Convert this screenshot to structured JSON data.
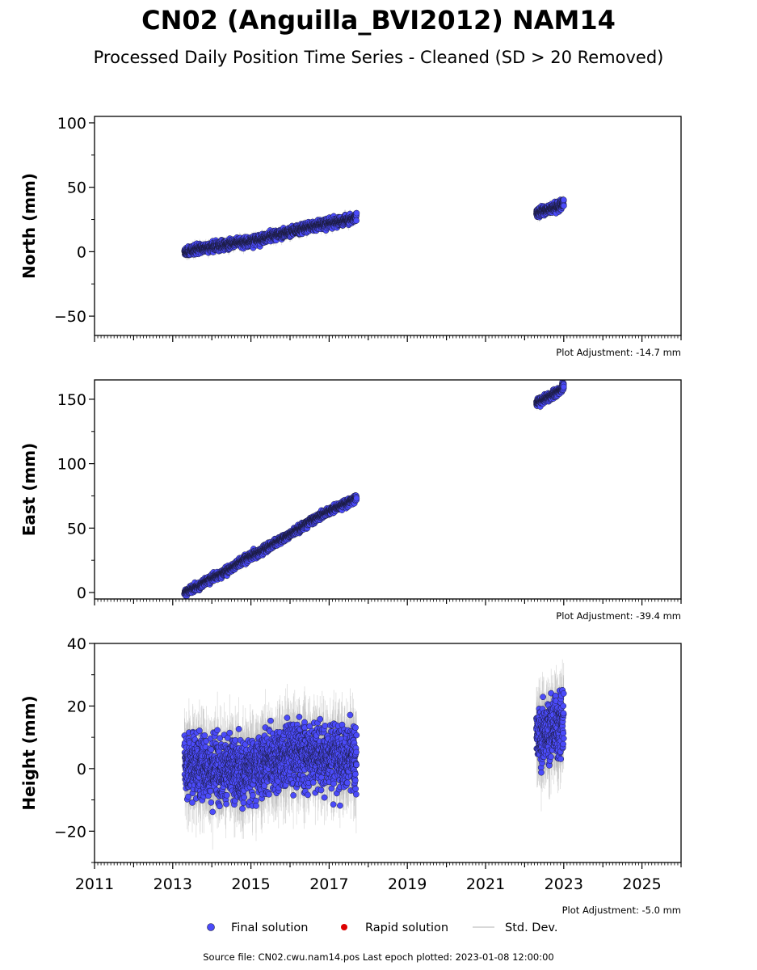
{
  "title": "CN02 (Anguilla_BVI2012) NAM14",
  "subtitle": "Processed Daily Position Time Series - Cleaned (SD > 20 Removed)",
  "source_note": "Source file: CN02.cwu.nam14.pos  Last epoch plotted: 2023-01-08 12:00:00",
  "legend": {
    "final": "Final solution",
    "rapid": "Rapid solution",
    "std": "Std. Dev."
  },
  "colors": {
    "final": "#4b4bfa",
    "final_edge": "#1a1a3a",
    "rapid": "#dd0000",
    "std": "#bbbbbb"
  },
  "chart_data": [
    {
      "type": "scatter",
      "ylabel": "North (mm)",
      "adjustment_label": "Plot Adjustment: -14.7 mm",
      "xlim": [
        2011,
        2026
      ],
      "ylim": [
        -65,
        105
      ],
      "yticks": [
        -50,
        0,
        50,
        100
      ],
      "grid": false,
      "series": [
        {
          "name": "Final solution",
          "x": [
            2013.3,
            2013.5,
            2013.7,
            2014.0,
            2014.3,
            2014.6,
            2015.0,
            2015.4,
            2015.8,
            2016.2,
            2016.6,
            2017.0,
            2017.4,
            2017.7,
            2022.3,
            2022.5,
            2022.7,
            2022.9,
            2023.0
          ],
          "y": [
            -1,
            1,
            3,
            3,
            5,
            7,
            8,
            11,
            14,
            17,
            20,
            22,
            24,
            27,
            30,
            32,
            34,
            36,
            38
          ],
          "spread": 2.5
        }
      ]
    },
    {
      "type": "scatter",
      "ylabel": "East (mm)",
      "adjustment_label": "Plot Adjustment: -39.4 mm",
      "xlim": [
        2011,
        2026
      ],
      "ylim": [
        -5,
        165
      ],
      "yticks": [
        0,
        50,
        100,
        150
      ],
      "grid": false,
      "series": [
        {
          "name": "Final solution",
          "x": [
            2013.3,
            2013.6,
            2014.0,
            2014.4,
            2014.8,
            2015.2,
            2015.6,
            2016.0,
            2016.4,
            2016.8,
            2017.2,
            2017.5,
            2017.7,
            2022.3,
            2022.5,
            2022.7,
            2022.9,
            2023.0
          ],
          "y": [
            0,
            4,
            11,
            17,
            25,
            31,
            38,
            45,
            53,
            60,
            66,
            70,
            74,
            147,
            150,
            153,
            157,
            160
          ],
          "spread": 2.0
        }
      ]
    },
    {
      "type": "scatter",
      "ylabel": "Height (mm)",
      "adjustment_label": "Plot Adjustment: -5.0 mm",
      "xlim": [
        2011,
        2026
      ],
      "ylim": [
        -30,
        40
      ],
      "yticks": [
        -20,
        0,
        20,
        40
      ],
      "xticks": [
        2011,
        2013,
        2015,
        2017,
        2019,
        2021,
        2023,
        2025
      ],
      "grid": false,
      "series": [
        {
          "name": "Final solution",
          "x": [
            2013.3,
            2013.8,
            2014.3,
            2014.8,
            2015.3,
            2015.8,
            2016.3,
            2016.8,
            2017.3,
            2017.7,
            2022.3,
            2022.6,
            2022.9,
            2023.0
          ],
          "y": [
            2,
            1,
            0,
            -1,
            2,
            4,
            5,
            4,
            4,
            3,
            10,
            12,
            14,
            15
          ],
          "spread": 7.0
        }
      ]
    }
  ]
}
